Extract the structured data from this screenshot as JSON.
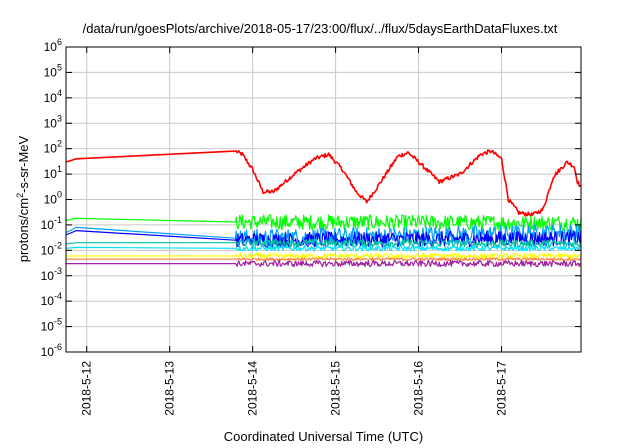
{
  "chart_data": {
    "type": "line",
    "title": "/data/run/goesPlots/archive/2018-05-17/23:00/flux/../flux/5daysEarthDataFluxes.txt",
    "xlabel": "Coordinated Universal Time (UTC)",
    "ylabel": "protons/cm²-s-sr-MeV",
    "yscale": "log",
    "ylim": [
      1e-06,
      1000000.0
    ],
    "xlim": [
      "2018-05-11 18:00",
      "2018-05-17 23:00"
    ],
    "x_ticks": [
      "2018-5-12",
      "2018-5-13",
      "2018-5-14",
      "2018-5-15",
      "2018-5-16",
      "2018-5-17"
    ],
    "y_ticks": [
      {
        "base": "10",
        "exp": "-6",
        "value": 1e-06
      },
      {
        "base": "10",
        "exp": "-5",
        "value": 1e-05
      },
      {
        "base": "10",
        "exp": "-4",
        "value": 0.0001
      },
      {
        "base": "10",
        "exp": "-3",
        "value": 0.001
      },
      {
        "base": "10",
        "exp": "-2",
        "value": 0.01
      },
      {
        "base": "10",
        "exp": "-1",
        "value": 0.1
      },
      {
        "base": "10",
        "exp": "0",
        "value": 1
      },
      {
        "base": "10",
        "exp": "1",
        "value": 10
      },
      {
        "base": "10",
        "exp": "2",
        "value": 100
      },
      {
        "base": "10",
        "exp": "3",
        "value": 1000
      },
      {
        "base": "10",
        "exp": "4",
        "value": 10000
      },
      {
        "base": "10",
        "exp": "5",
        "value": 100000
      },
      {
        "base": "10",
        "exp": "6",
        "value": 1000000
      }
    ],
    "grid": true,
    "data_gap": [
      "2018-05-11 21:00",
      "2018-05-13 19:00"
    ],
    "series": [
      {
        "color": "#ff0000",
        "noise": 0.08,
        "points": [
          [
            "2018-05-11 18:00",
            30
          ],
          [
            "2018-05-11 21:00",
            40
          ],
          [
            "2018-05-13 19:00",
            80
          ],
          [
            "2018-05-13 21:00",
            60
          ],
          [
            "2018-05-14 00:00",
            15
          ],
          [
            "2018-05-14 03:00",
            2
          ],
          [
            "2018-05-14 06:00",
            2
          ],
          [
            "2018-05-14 12:00",
            10
          ],
          [
            "2018-05-14 18:00",
            40
          ],
          [
            "2018-05-14 22:00",
            60
          ],
          [
            "2018-05-15 02:00",
            15
          ],
          [
            "2018-05-15 06:00",
            2
          ],
          [
            "2018-05-15 09:00",
            0.8
          ],
          [
            "2018-05-15 12:00",
            3
          ],
          [
            "2018-05-15 18:00",
            50
          ],
          [
            "2018-05-15 21:00",
            70
          ],
          [
            "2018-05-16 00:00",
            30
          ],
          [
            "2018-05-16 06:00",
            5
          ],
          [
            "2018-05-16 12:00",
            10
          ],
          [
            "2018-05-16 18:00",
            60
          ],
          [
            "2018-05-16 21:00",
            80
          ],
          [
            "2018-05-17 00:00",
            40
          ],
          [
            "2018-05-17 02:00",
            1
          ],
          [
            "2018-05-17 05:00",
            0.3
          ],
          [
            "2018-05-17 09:00",
            0.25
          ],
          [
            "2018-05-17 12:00",
            0.4
          ],
          [
            "2018-05-17 15:00",
            8
          ],
          [
            "2018-05-17 19:00",
            30
          ],
          [
            "2018-05-17 21:00",
            20
          ],
          [
            "2018-05-17 22:00",
            5
          ],
          [
            "2018-05-17 23:00",
            3
          ]
        ]
      },
      {
        "color": "#00ff00",
        "noise": 0.3,
        "points": [
          [
            "2018-05-11 18:00",
            0.15
          ],
          [
            "2018-05-11 21:00",
            0.18
          ],
          [
            "2018-05-13 19:00",
            0.13
          ],
          [
            "2018-05-17 23:00",
            0.12
          ]
        ]
      },
      {
        "color": "#00a0ff",
        "noise": 0.35,
        "points": [
          [
            "2018-05-11 18:00",
            0.05
          ],
          [
            "2018-05-11 21:00",
            0.08
          ],
          [
            "2018-05-13 19:00",
            0.03
          ],
          [
            "2018-05-17 23:00",
            0.05
          ]
        ]
      },
      {
        "color": "#0000ff",
        "noise": 0.3,
        "points": [
          [
            "2018-05-11 18:00",
            0.04
          ],
          [
            "2018-05-11 21:00",
            0.06
          ],
          [
            "2018-05-13 19:00",
            0.025
          ],
          [
            "2018-05-17 23:00",
            0.03
          ]
        ]
      },
      {
        "color": "#00c0a0",
        "noise": 0.15,
        "points": [
          [
            "2018-05-11 18:00",
            0.018
          ],
          [
            "2018-05-11 21:00",
            0.02
          ],
          [
            "2018-05-13 19:00",
            0.02
          ],
          [
            "2018-05-17 23:00",
            0.018
          ]
        ]
      },
      {
        "color": "#00e0ff",
        "noise": 0.1,
        "points": [
          [
            "2018-05-11 18:00",
            0.012
          ],
          [
            "2018-05-11 21:00",
            0.013
          ],
          [
            "2018-05-13 19:00",
            0.012
          ],
          [
            "2018-05-17 23:00",
            0.012
          ]
        ]
      },
      {
        "color": "#ffff00",
        "noise": 0.1,
        "points": [
          [
            "2018-05-11 18:00",
            0.006
          ],
          [
            "2018-05-11 21:00",
            0.006
          ],
          [
            "2018-05-13 19:00",
            0.006
          ],
          [
            "2018-05-17 23:00",
            0.006
          ]
        ]
      },
      {
        "color": "#ff8040",
        "noise": 0.05,
        "points": [
          [
            "2018-05-11 18:00",
            0.0045
          ],
          [
            "2018-05-11 21:00",
            0.0045
          ],
          [
            "2018-05-13 19:00",
            0.0045
          ],
          [
            "2018-05-17 23:00",
            0.0045
          ]
        ]
      },
      {
        "color": "#a020a0",
        "noise": 0.12,
        "points": [
          [
            "2018-05-11 18:00",
            0.003
          ],
          [
            "2018-05-11 21:00",
            0.003
          ],
          [
            "2018-05-13 19:00",
            0.003
          ],
          [
            "2018-05-17 23:00",
            0.003
          ]
        ]
      }
    ]
  }
}
